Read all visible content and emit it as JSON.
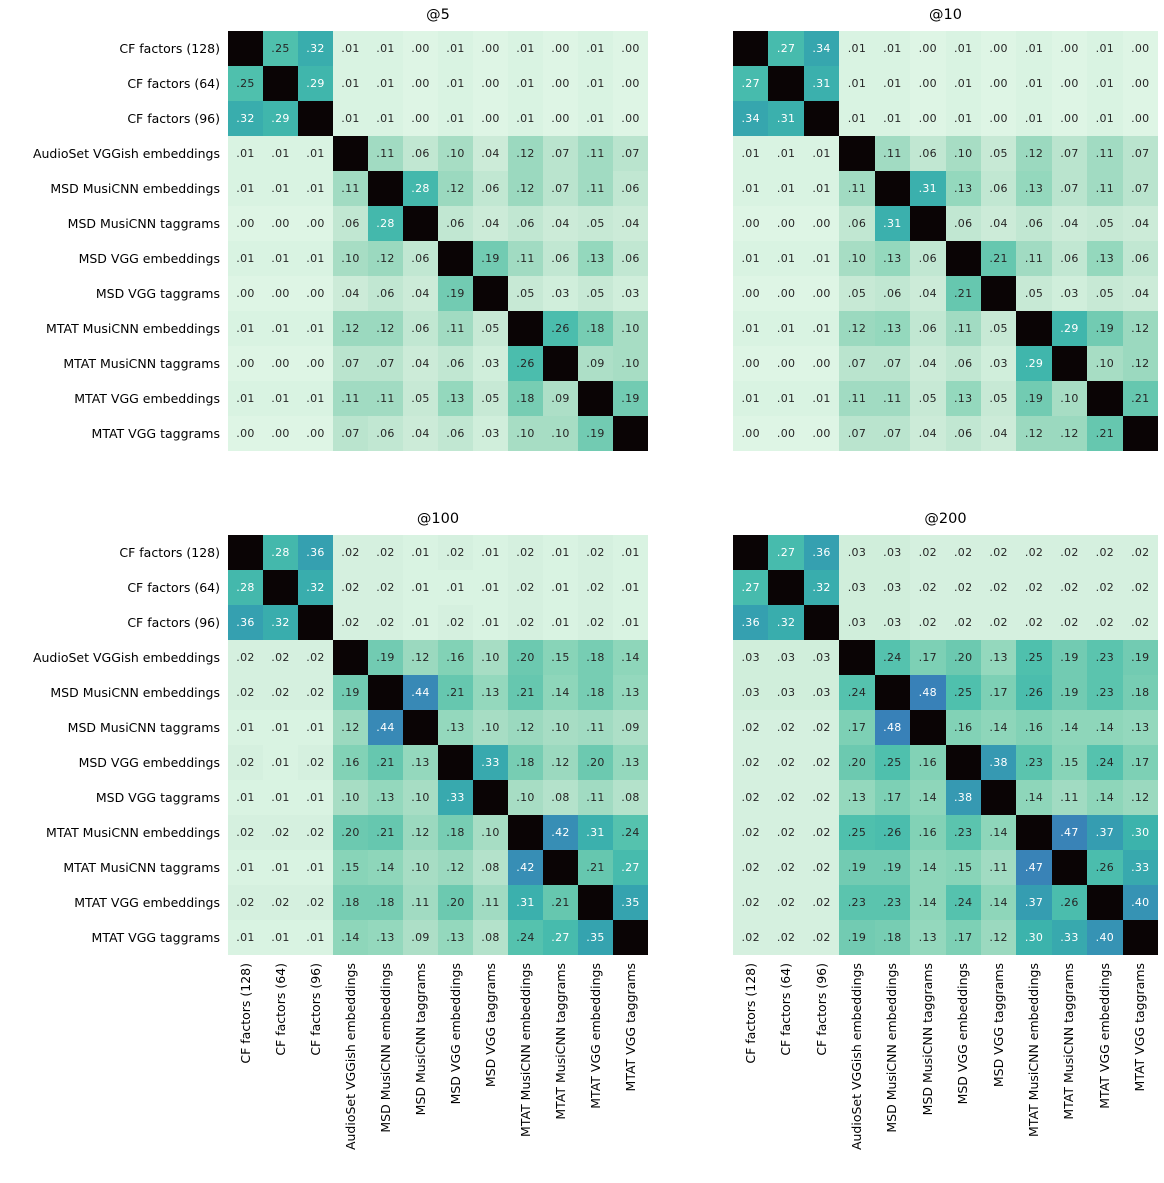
{
  "figure": {
    "background": "#ffffff",
    "description": "Four annotated similarity heatmaps comparing music model embeddings at different cutoffs"
  },
  "style": {
    "colormap_anchors": [
      [
        0.0,
        "#def5e5"
      ],
      [
        0.05,
        "#c7e9d5"
      ],
      [
        0.1,
        "#a7ddc4"
      ],
      [
        0.15,
        "#88d4b8"
      ],
      [
        0.2,
        "#6cc9b0"
      ],
      [
        0.25,
        "#4fc0ad"
      ],
      [
        0.3,
        "#3cb3ac"
      ],
      [
        0.35,
        "#35a3af"
      ],
      [
        0.4,
        "#3693b4"
      ],
      [
        0.45,
        "#3986b6"
      ],
      [
        0.5,
        "#387eb9"
      ]
    ],
    "diagonal_color": "#0a0405",
    "annot_dark": "#262626",
    "annot_light": "#ffffff",
    "white_text_threshold": 0.27,
    "value_display": "two decimals, leading zero omitted"
  },
  "row_labels": [
    "CF factors (128)",
    "CF factors (64)",
    "CF factors (96)",
    "AudioSet VGGish embeddings",
    "MSD MusiCNN embeddings",
    "MSD MusiCNN taggrams",
    "MSD VGG embeddings",
    "MSD VGG taggrams",
    "MTAT MusiCNN embeddings",
    "MTAT MusiCNN taggrams",
    "MTAT VGG embeddings",
    "MTAT VGG taggrams"
  ],
  "chart_data": [
    {
      "type": "heatmap",
      "title": "@5",
      "categories": [
        "CF factors (128)",
        "CF factors (64)",
        "CF factors (96)",
        "AudioSet VGGish embeddings",
        "MSD MusiCNN embeddings",
        "MSD MusiCNN taggrams",
        "MSD VGG embeddings",
        "MSD VGG taggrams",
        "MTAT MusiCNN embeddings",
        "MTAT MusiCNN taggrams",
        "MTAT VGG embeddings",
        "MTAT VGG taggrams"
      ],
      "matrix": [
        [
          null,
          0.25,
          0.32,
          0.01,
          0.01,
          0.0,
          0.01,
          0.0,
          0.01,
          0.0,
          0.01,
          0.0
        ],
        [
          0.25,
          null,
          0.29,
          0.01,
          0.01,
          0.0,
          0.01,
          0.0,
          0.01,
          0.0,
          0.01,
          0.0
        ],
        [
          0.32,
          0.29,
          null,
          0.01,
          0.01,
          0.0,
          0.01,
          0.0,
          0.01,
          0.0,
          0.01,
          0.0
        ],
        [
          0.01,
          0.01,
          0.01,
          null,
          0.11,
          0.06,
          0.1,
          0.04,
          0.12,
          0.07,
          0.11,
          0.07
        ],
        [
          0.01,
          0.01,
          0.01,
          0.11,
          null,
          0.28,
          0.12,
          0.06,
          0.12,
          0.07,
          0.11,
          0.06
        ],
        [
          0.0,
          0.0,
          0.0,
          0.06,
          0.28,
          null,
          0.06,
          0.04,
          0.06,
          0.04,
          0.05,
          0.04
        ],
        [
          0.01,
          0.01,
          0.01,
          0.1,
          0.12,
          0.06,
          null,
          0.19,
          0.11,
          0.06,
          0.13,
          0.06
        ],
        [
          0.0,
          0.0,
          0.0,
          0.04,
          0.06,
          0.04,
          0.19,
          null,
          0.05,
          0.03,
          0.05,
          0.03
        ],
        [
          0.01,
          0.01,
          0.01,
          0.12,
          0.12,
          0.06,
          0.11,
          0.05,
          null,
          0.26,
          0.18,
          0.1
        ],
        [
          0.0,
          0.0,
          0.0,
          0.07,
          0.07,
          0.04,
          0.06,
          0.03,
          0.26,
          null,
          0.09,
          0.1
        ],
        [
          0.01,
          0.01,
          0.01,
          0.11,
          0.11,
          0.05,
          0.13,
          0.05,
          0.18,
          0.09,
          null,
          0.19
        ],
        [
          0.0,
          0.0,
          0.0,
          0.07,
          0.06,
          0.04,
          0.06,
          0.03,
          0.1,
          0.1,
          0.19,
          null
        ]
      ]
    },
    {
      "type": "heatmap",
      "title": "@10",
      "categories": [
        "CF factors (128)",
        "CF factors (64)",
        "CF factors (96)",
        "AudioSet VGGish embeddings",
        "MSD MusiCNN embeddings",
        "MSD MusiCNN taggrams",
        "MSD VGG embeddings",
        "MSD VGG taggrams",
        "MTAT MusiCNN embeddings",
        "MTAT MusiCNN taggrams",
        "MTAT VGG embeddings",
        "MTAT VGG taggrams"
      ],
      "matrix": [
        [
          null,
          0.27,
          0.34,
          0.01,
          0.01,
          0.0,
          0.01,
          0.0,
          0.01,
          0.0,
          0.01,
          0.0
        ],
        [
          0.27,
          null,
          0.31,
          0.01,
          0.01,
          0.0,
          0.01,
          0.0,
          0.01,
          0.0,
          0.01,
          0.0
        ],
        [
          0.34,
          0.31,
          null,
          0.01,
          0.01,
          0.0,
          0.01,
          0.0,
          0.01,
          0.0,
          0.01,
          0.0
        ],
        [
          0.01,
          0.01,
          0.01,
          null,
          0.11,
          0.06,
          0.1,
          0.05,
          0.12,
          0.07,
          0.11,
          0.07
        ],
        [
          0.01,
          0.01,
          0.01,
          0.11,
          null,
          0.31,
          0.13,
          0.06,
          0.13,
          0.07,
          0.11,
          0.07
        ],
        [
          0.0,
          0.0,
          0.0,
          0.06,
          0.31,
          null,
          0.06,
          0.04,
          0.06,
          0.04,
          0.05,
          0.04
        ],
        [
          0.01,
          0.01,
          0.01,
          0.1,
          0.13,
          0.06,
          null,
          0.21,
          0.11,
          0.06,
          0.13,
          0.06
        ],
        [
          0.0,
          0.0,
          0.0,
          0.05,
          0.06,
          0.04,
          0.21,
          null,
          0.05,
          0.03,
          0.05,
          0.04
        ],
        [
          0.01,
          0.01,
          0.01,
          0.12,
          0.13,
          0.06,
          0.11,
          0.05,
          null,
          0.29,
          0.19,
          0.12
        ],
        [
          0.0,
          0.0,
          0.0,
          0.07,
          0.07,
          0.04,
          0.06,
          0.03,
          0.29,
          null,
          0.1,
          0.12
        ],
        [
          0.01,
          0.01,
          0.01,
          0.11,
          0.11,
          0.05,
          0.13,
          0.05,
          0.19,
          0.1,
          null,
          0.21
        ],
        [
          0.0,
          0.0,
          0.0,
          0.07,
          0.07,
          0.04,
          0.06,
          0.04,
          0.12,
          0.12,
          0.21,
          null
        ]
      ]
    },
    {
      "type": "heatmap",
      "title": "@100",
      "categories": [
        "CF factors (128)",
        "CF factors (64)",
        "CF factors (96)",
        "AudioSet VGGish embeddings",
        "MSD MusiCNN embeddings",
        "MSD MusiCNN taggrams",
        "MSD VGG embeddings",
        "MSD VGG taggrams",
        "MTAT MusiCNN embeddings",
        "MTAT MusiCNN taggrams",
        "MTAT VGG embeddings",
        "MTAT VGG taggrams"
      ],
      "matrix": [
        [
          null,
          0.28,
          0.36,
          0.02,
          0.02,
          0.01,
          0.02,
          0.01,
          0.02,
          0.01,
          0.02,
          0.01
        ],
        [
          0.28,
          null,
          0.32,
          0.02,
          0.02,
          0.01,
          0.01,
          0.01,
          0.02,
          0.01,
          0.02,
          0.01
        ],
        [
          0.36,
          0.32,
          null,
          0.02,
          0.02,
          0.01,
          0.02,
          0.01,
          0.02,
          0.01,
          0.02,
          0.01
        ],
        [
          0.02,
          0.02,
          0.02,
          null,
          0.19,
          0.12,
          0.16,
          0.1,
          0.2,
          0.15,
          0.18,
          0.14
        ],
        [
          0.02,
          0.02,
          0.02,
          0.19,
          null,
          0.44,
          0.21,
          0.13,
          0.21,
          0.14,
          0.18,
          0.13
        ],
        [
          0.01,
          0.01,
          0.01,
          0.12,
          0.44,
          null,
          0.13,
          0.1,
          0.12,
          0.1,
          0.11,
          0.09
        ],
        [
          0.02,
          0.01,
          0.02,
          0.16,
          0.21,
          0.13,
          null,
          0.33,
          0.18,
          0.12,
          0.2,
          0.13
        ],
        [
          0.01,
          0.01,
          0.01,
          0.1,
          0.13,
          0.1,
          0.33,
          null,
          0.1,
          0.08,
          0.11,
          0.08
        ],
        [
          0.02,
          0.02,
          0.02,
          0.2,
          0.21,
          0.12,
          0.18,
          0.1,
          null,
          0.42,
          0.31,
          0.24
        ],
        [
          0.01,
          0.01,
          0.01,
          0.15,
          0.14,
          0.1,
          0.12,
          0.08,
          0.42,
          null,
          0.21,
          0.27
        ],
        [
          0.02,
          0.02,
          0.02,
          0.18,
          0.18,
          0.11,
          0.2,
          0.11,
          0.31,
          0.21,
          null,
          0.35
        ],
        [
          0.01,
          0.01,
          0.01,
          0.14,
          0.13,
          0.09,
          0.13,
          0.08,
          0.24,
          0.27,
          0.35,
          null
        ]
      ]
    },
    {
      "type": "heatmap",
      "title": "@200",
      "categories": [
        "CF factors (128)",
        "CF factors (64)",
        "CF factors (96)",
        "AudioSet VGGish embeddings",
        "MSD MusiCNN embeddings",
        "MSD MusiCNN taggrams",
        "MSD VGG embeddings",
        "MSD VGG taggrams",
        "MTAT MusiCNN embeddings",
        "MTAT MusiCNN taggrams",
        "MTAT VGG embeddings",
        "MTAT VGG taggrams"
      ],
      "matrix": [
        [
          null,
          0.27,
          0.36,
          0.03,
          0.03,
          0.02,
          0.02,
          0.02,
          0.02,
          0.02,
          0.02,
          0.02
        ],
        [
          0.27,
          null,
          0.32,
          0.03,
          0.03,
          0.02,
          0.02,
          0.02,
          0.02,
          0.02,
          0.02,
          0.02
        ],
        [
          0.36,
          0.32,
          null,
          0.03,
          0.03,
          0.02,
          0.02,
          0.02,
          0.02,
          0.02,
          0.02,
          0.02
        ],
        [
          0.03,
          0.03,
          0.03,
          null,
          0.24,
          0.17,
          0.2,
          0.13,
          0.25,
          0.19,
          0.23,
          0.19
        ],
        [
          0.03,
          0.03,
          0.03,
          0.24,
          null,
          0.48,
          0.25,
          0.17,
          0.26,
          0.19,
          0.23,
          0.18
        ],
        [
          0.02,
          0.02,
          0.02,
          0.17,
          0.48,
          null,
          0.16,
          0.14,
          0.16,
          0.14,
          0.14,
          0.13
        ],
        [
          0.02,
          0.02,
          0.02,
          0.2,
          0.25,
          0.16,
          null,
          0.38,
          0.23,
          0.15,
          0.24,
          0.17
        ],
        [
          0.02,
          0.02,
          0.02,
          0.13,
          0.17,
          0.14,
          0.38,
          null,
          0.14,
          0.11,
          0.14,
          0.12
        ],
        [
          0.02,
          0.02,
          0.02,
          0.25,
          0.26,
          0.16,
          0.23,
          0.14,
          null,
          0.47,
          0.37,
          0.3
        ],
        [
          0.02,
          0.02,
          0.02,
          0.19,
          0.19,
          0.14,
          0.15,
          0.11,
          0.47,
          null,
          0.26,
          0.33
        ],
        [
          0.02,
          0.02,
          0.02,
          0.23,
          0.23,
          0.14,
          0.24,
          0.14,
          0.37,
          0.26,
          null,
          0.4
        ],
        [
          0.02,
          0.02,
          0.02,
          0.19,
          0.18,
          0.13,
          0.17,
          0.12,
          0.3,
          0.33,
          0.4,
          null
        ]
      ]
    }
  ]
}
